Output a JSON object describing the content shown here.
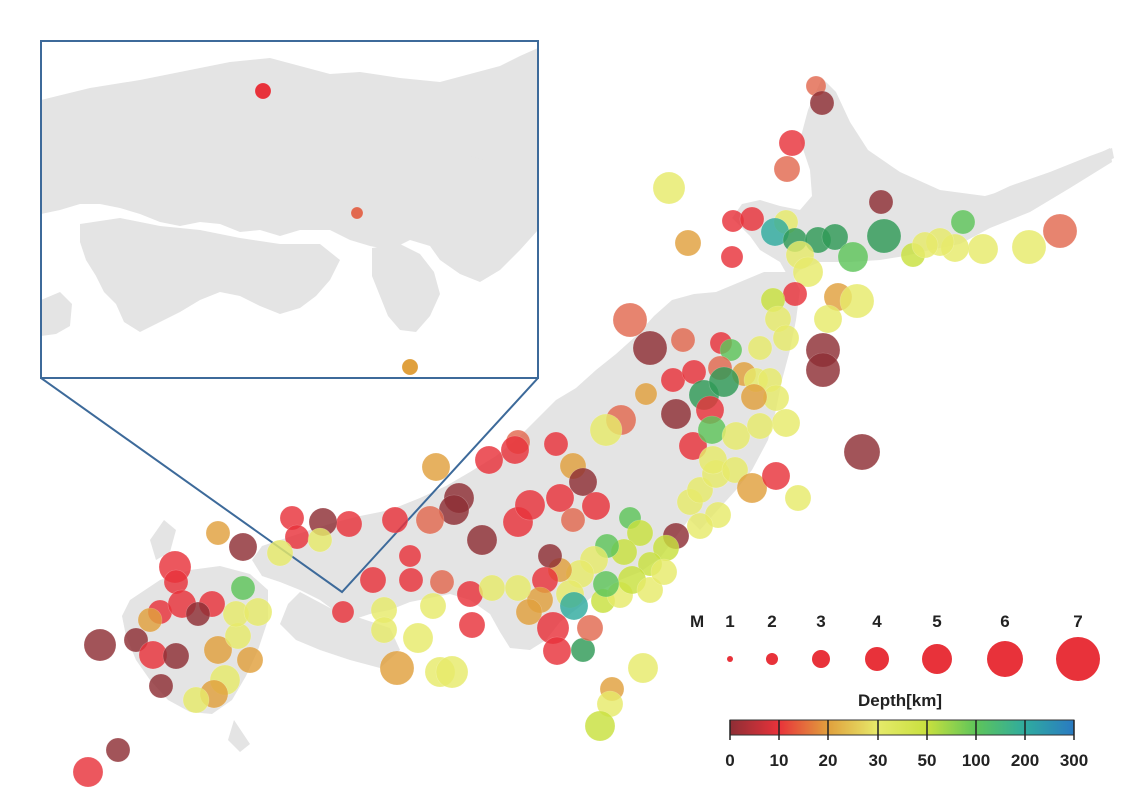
{
  "palette": {
    "deep_red": "#8e2e35",
    "red": "#e8323a",
    "salmon": "#e2694f",
    "orange": "#e0a03d",
    "yellow": "#e6ea6a",
    "yellow_green": "#c8e03e",
    "green": "#5ec55a",
    "dark_green": "#2f9a57",
    "teal": "#2fab9f",
    "blue": "#2a7ac2",
    "land": "#e4e4e4",
    "inset_border": "#3d6a9a"
  },
  "legend": {
    "magnitude_label": "M",
    "magnitudes": [
      {
        "label": "1",
        "value": 1
      },
      {
        "label": "2",
        "value": 2
      },
      {
        "label": "3",
        "value": 3
      },
      {
        "label": "4",
        "value": 4
      },
      {
        "label": "5",
        "value": 5
      },
      {
        "label": "6",
        "value": 6
      },
      {
        "label": "7",
        "value": 7
      }
    ],
    "depth_title": "Depth[km]",
    "depth_ticks": [
      "0",
      "10",
      "20",
      "30",
      "50",
      "100",
      "200",
      "300"
    ],
    "depth_colors": [
      "#8e2e35",
      "#e8323a",
      "#e0a03d",
      "#e6ea6a",
      "#c8e03e",
      "#5ec55a",
      "#2fab9f",
      "#2a7ac2"
    ]
  },
  "inset": {
    "quakes": [
      {
        "color": "red"
      },
      {
        "color": "salmon"
      },
      {
        "color": "orange"
      }
    ]
  },
  "map": {
    "quake_color_keys": [
      "deep_red",
      "red",
      "salmon",
      "orange",
      "yellow",
      "yellow_green",
      "green",
      "dark_green",
      "teal"
    ]
  }
}
